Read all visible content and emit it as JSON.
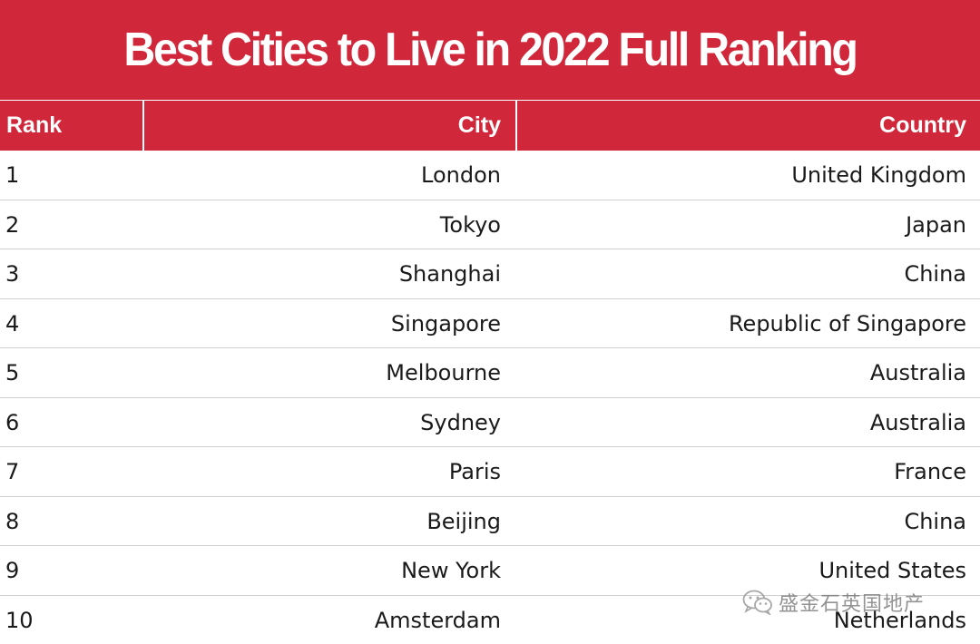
{
  "title": "Best Cities to Live in 2022 Full Ranking",
  "headers": {
    "rank": "Rank",
    "city": "City",
    "country": "Country"
  },
  "rows": [
    {
      "rank": "1",
      "city": "London",
      "country": "United Kingdom"
    },
    {
      "rank": "2",
      "city": "Tokyo",
      "country": "Japan"
    },
    {
      "rank": "3",
      "city": "Shanghai",
      "country": "China"
    },
    {
      "rank": "4",
      "city": "Singapore",
      "country": "Republic of Singapore"
    },
    {
      "rank": "5",
      "city": "Melbourne",
      "country": "Australia"
    },
    {
      "rank": "6",
      "city": "Sydney",
      "country": "Australia"
    },
    {
      "rank": "7",
      "city": "Paris",
      "country": "France"
    },
    {
      "rank": "8",
      "city": "Beijing",
      "country": "China"
    },
    {
      "rank": "9",
      "city": "New York",
      "country": "United States"
    },
    {
      "rank": "10",
      "city": "Amsterdam",
      "country": "Netherlands"
    }
  ],
  "watermark": {
    "text": "盛金石英国地产",
    "icon": "wechat-icon"
  },
  "colors": {
    "header_bg": "#d1273a",
    "header_text": "#ffffff",
    "row_divider": "#cfcfcf",
    "body_text": "#1a1a1a"
  }
}
